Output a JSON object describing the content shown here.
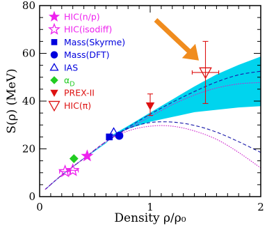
{
  "chart_data": {
    "type": "scatter",
    "xlabel": "Density ρ/ρ₀",
    "ylabel": "S(ρ) (MeV)",
    "xlim": [
      0,
      2
    ],
    "ylim": [
      0,
      80
    ],
    "xticks": [
      0,
      1,
      2
    ],
    "yticks": [
      0,
      20,
      40,
      60,
      80
    ],
    "grid": false,
    "legend_position": "top-left",
    "band": {
      "color": "#00d4ee",
      "x": [
        0.05,
        0.2,
        0.4,
        0.6,
        0.67,
        0.8,
        1.0,
        1.2,
        1.4,
        1.6,
        1.8,
        2.0
      ],
      "lower": [
        3,
        9,
        16,
        22.5,
        26,
        28.5,
        31.5,
        33.5,
        35.5,
        36.5,
        37.5,
        38
      ],
      "upper": [
        3,
        9,
        16,
        22.5,
        26,
        29.5,
        35,
        40.5,
        46,
        51,
        55,
        58.5
      ]
    },
    "series": [
      {
        "name": "HIC(n/p)",
        "marker": "star-filled",
        "color": "#ee22ee",
        "points": [
          [
            0.43,
            17
          ]
        ],
        "yerr": [
          [
            0.43,
            17,
            17
          ]
        ]
      },
      {
        "name": "HIC(isodiff)",
        "marker": "star-open",
        "color": "#ee22ee",
        "points": [
          [
            0.23,
            10.5
          ],
          [
            0.3,
            11
          ]
        ],
        "xerr": [
          [
            0.23,
            0.18,
            0.28
          ],
          [
            0.3,
            0.25,
            0.35
          ]
        ]
      },
      {
        "name": "Mass(Skyrme)",
        "marker": "square-filled",
        "color": "#0000dd",
        "points": [
          [
            0.63,
            25
          ]
        ]
      },
      {
        "name": "Mass(DFT)",
        "marker": "circle-filled",
        "color": "#0000dd",
        "points": [
          [
            0.72,
            25.5
          ]
        ]
      },
      {
        "name": "IAS",
        "marker": "triangle-open",
        "color": "#0000dd",
        "points": [
          [
            0.67,
            27
          ]
        ]
      },
      {
        "name": "α",
        "subscript": "D",
        "marker": "diamond-filled",
        "color": "#22cc22",
        "points": [
          [
            0.31,
            15.9
          ]
        ]
      },
      {
        "name": "PREX-II",
        "marker": "triangle-down-filled",
        "color": "#dd1111",
        "points": [
          [
            1.0,
            38
          ]
        ],
        "yerr": [
          [
            1.0,
            34,
            43
          ]
        ]
      },
      {
        "name": "HIC(π)",
        "marker": "triangle-down-open",
        "color": "#dd1111",
        "points": [
          [
            1.5,
            52
          ]
        ],
        "yerr": [
          [
            1.5,
            39,
            65
          ]
        ],
        "xerr": [
          [
            1.5,
            1.38,
            1.62
          ]
        ]
      }
    ],
    "curves": [
      {
        "style": "dashed",
        "color": "#1a1aaa",
        "x": [
          0.05,
          0.2,
          0.4,
          0.6,
          0.8,
          1.0,
          1.2,
          1.4,
          1.6,
          1.8,
          2.0
        ],
        "y": [
          3,
          9,
          16,
          23,
          29,
          34.5,
          39.5,
          44,
          48,
          51,
          52.5
        ]
      },
      {
        "style": "dotted",
        "color": "#cc22cc",
        "x": [
          0.05,
          0.2,
          0.4,
          0.6,
          0.8,
          1.0,
          1.2,
          1.4,
          1.6,
          1.8,
          2.0
        ],
        "y": [
          3,
          9,
          16,
          23,
          28.5,
          33.5,
          38.5,
          42.5,
          45.5,
          47.2,
          47.8
        ]
      },
      {
        "style": "dashed",
        "color": "#1a1aaa",
        "x": [
          0.05,
          0.2,
          0.4,
          0.6,
          0.8,
          1.0,
          1.2,
          1.4,
          1.6,
          1.8,
          2.0
        ],
        "y": [
          3,
          9,
          16,
          23,
          28.5,
          31,
          31.2,
          29.8,
          27,
          23,
          18.5
        ]
      },
      {
        "style": "dotted",
        "color": "#cc22cc",
        "x": [
          0.05,
          0.2,
          0.4,
          0.6,
          0.8,
          1.0,
          1.2,
          1.4,
          1.6,
          1.8,
          2.0
        ],
        "y": [
          3,
          9,
          16,
          23,
          27.5,
          29.5,
          29.5,
          27.5,
          24,
          18.5,
          12
        ]
      }
    ],
    "annotation_arrow": {
      "color": "#f08c1e",
      "from": [
        1.05,
        74
      ],
      "to": [
        1.44,
        57
      ]
    }
  }
}
